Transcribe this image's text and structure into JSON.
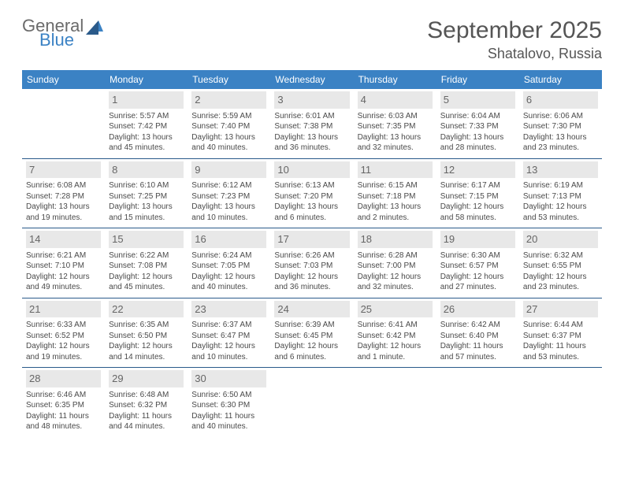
{
  "logo": {
    "top": "General",
    "bot": "Blue"
  },
  "title": "September 2025",
  "location": "Shatalovo, Russia",
  "colors": {
    "header_bg": "#3b82c4",
    "header_fg": "#ffffff",
    "daynum_bg": "#e8e8e8",
    "line": "#2a5a8a",
    "text": "#4a4a4a"
  },
  "weekdays": [
    "Sunday",
    "Monday",
    "Tuesday",
    "Wednesday",
    "Thursday",
    "Friday",
    "Saturday"
  ],
  "weeks": [
    [
      null,
      {
        "n": "1",
        "sr": "Sunrise: 5:57 AM",
        "ss": "Sunset: 7:42 PM",
        "dl": "Daylight: 13 hours and 45 minutes."
      },
      {
        "n": "2",
        "sr": "Sunrise: 5:59 AM",
        "ss": "Sunset: 7:40 PM",
        "dl": "Daylight: 13 hours and 40 minutes."
      },
      {
        "n": "3",
        "sr": "Sunrise: 6:01 AM",
        "ss": "Sunset: 7:38 PM",
        "dl": "Daylight: 13 hours and 36 minutes."
      },
      {
        "n": "4",
        "sr": "Sunrise: 6:03 AM",
        "ss": "Sunset: 7:35 PM",
        "dl": "Daylight: 13 hours and 32 minutes."
      },
      {
        "n": "5",
        "sr": "Sunrise: 6:04 AM",
        "ss": "Sunset: 7:33 PM",
        "dl": "Daylight: 13 hours and 28 minutes."
      },
      {
        "n": "6",
        "sr": "Sunrise: 6:06 AM",
        "ss": "Sunset: 7:30 PM",
        "dl": "Daylight: 13 hours and 23 minutes."
      }
    ],
    [
      {
        "n": "7",
        "sr": "Sunrise: 6:08 AM",
        "ss": "Sunset: 7:28 PM",
        "dl": "Daylight: 13 hours and 19 minutes."
      },
      {
        "n": "8",
        "sr": "Sunrise: 6:10 AM",
        "ss": "Sunset: 7:25 PM",
        "dl": "Daylight: 13 hours and 15 minutes."
      },
      {
        "n": "9",
        "sr": "Sunrise: 6:12 AM",
        "ss": "Sunset: 7:23 PM",
        "dl": "Daylight: 13 hours and 10 minutes."
      },
      {
        "n": "10",
        "sr": "Sunrise: 6:13 AM",
        "ss": "Sunset: 7:20 PM",
        "dl": "Daylight: 13 hours and 6 minutes."
      },
      {
        "n": "11",
        "sr": "Sunrise: 6:15 AM",
        "ss": "Sunset: 7:18 PM",
        "dl": "Daylight: 13 hours and 2 minutes."
      },
      {
        "n": "12",
        "sr": "Sunrise: 6:17 AM",
        "ss": "Sunset: 7:15 PM",
        "dl": "Daylight: 12 hours and 58 minutes."
      },
      {
        "n": "13",
        "sr": "Sunrise: 6:19 AM",
        "ss": "Sunset: 7:13 PM",
        "dl": "Daylight: 12 hours and 53 minutes."
      }
    ],
    [
      {
        "n": "14",
        "sr": "Sunrise: 6:21 AM",
        "ss": "Sunset: 7:10 PM",
        "dl": "Daylight: 12 hours and 49 minutes."
      },
      {
        "n": "15",
        "sr": "Sunrise: 6:22 AM",
        "ss": "Sunset: 7:08 PM",
        "dl": "Daylight: 12 hours and 45 minutes."
      },
      {
        "n": "16",
        "sr": "Sunrise: 6:24 AM",
        "ss": "Sunset: 7:05 PM",
        "dl": "Daylight: 12 hours and 40 minutes."
      },
      {
        "n": "17",
        "sr": "Sunrise: 6:26 AM",
        "ss": "Sunset: 7:03 PM",
        "dl": "Daylight: 12 hours and 36 minutes."
      },
      {
        "n": "18",
        "sr": "Sunrise: 6:28 AM",
        "ss": "Sunset: 7:00 PM",
        "dl": "Daylight: 12 hours and 32 minutes."
      },
      {
        "n": "19",
        "sr": "Sunrise: 6:30 AM",
        "ss": "Sunset: 6:57 PM",
        "dl": "Daylight: 12 hours and 27 minutes."
      },
      {
        "n": "20",
        "sr": "Sunrise: 6:32 AM",
        "ss": "Sunset: 6:55 PM",
        "dl": "Daylight: 12 hours and 23 minutes."
      }
    ],
    [
      {
        "n": "21",
        "sr": "Sunrise: 6:33 AM",
        "ss": "Sunset: 6:52 PM",
        "dl": "Daylight: 12 hours and 19 minutes."
      },
      {
        "n": "22",
        "sr": "Sunrise: 6:35 AM",
        "ss": "Sunset: 6:50 PM",
        "dl": "Daylight: 12 hours and 14 minutes."
      },
      {
        "n": "23",
        "sr": "Sunrise: 6:37 AM",
        "ss": "Sunset: 6:47 PM",
        "dl": "Daylight: 12 hours and 10 minutes."
      },
      {
        "n": "24",
        "sr": "Sunrise: 6:39 AM",
        "ss": "Sunset: 6:45 PM",
        "dl": "Daylight: 12 hours and 6 minutes."
      },
      {
        "n": "25",
        "sr": "Sunrise: 6:41 AM",
        "ss": "Sunset: 6:42 PM",
        "dl": "Daylight: 12 hours and 1 minute."
      },
      {
        "n": "26",
        "sr": "Sunrise: 6:42 AM",
        "ss": "Sunset: 6:40 PM",
        "dl": "Daylight: 11 hours and 57 minutes."
      },
      {
        "n": "27",
        "sr": "Sunrise: 6:44 AM",
        "ss": "Sunset: 6:37 PM",
        "dl": "Daylight: 11 hours and 53 minutes."
      }
    ],
    [
      {
        "n": "28",
        "sr": "Sunrise: 6:46 AM",
        "ss": "Sunset: 6:35 PM",
        "dl": "Daylight: 11 hours and 48 minutes."
      },
      {
        "n": "29",
        "sr": "Sunrise: 6:48 AM",
        "ss": "Sunset: 6:32 PM",
        "dl": "Daylight: 11 hours and 44 minutes."
      },
      {
        "n": "30",
        "sr": "Sunrise: 6:50 AM",
        "ss": "Sunset: 6:30 PM",
        "dl": "Daylight: 11 hours and 40 minutes."
      },
      null,
      null,
      null,
      null
    ]
  ]
}
